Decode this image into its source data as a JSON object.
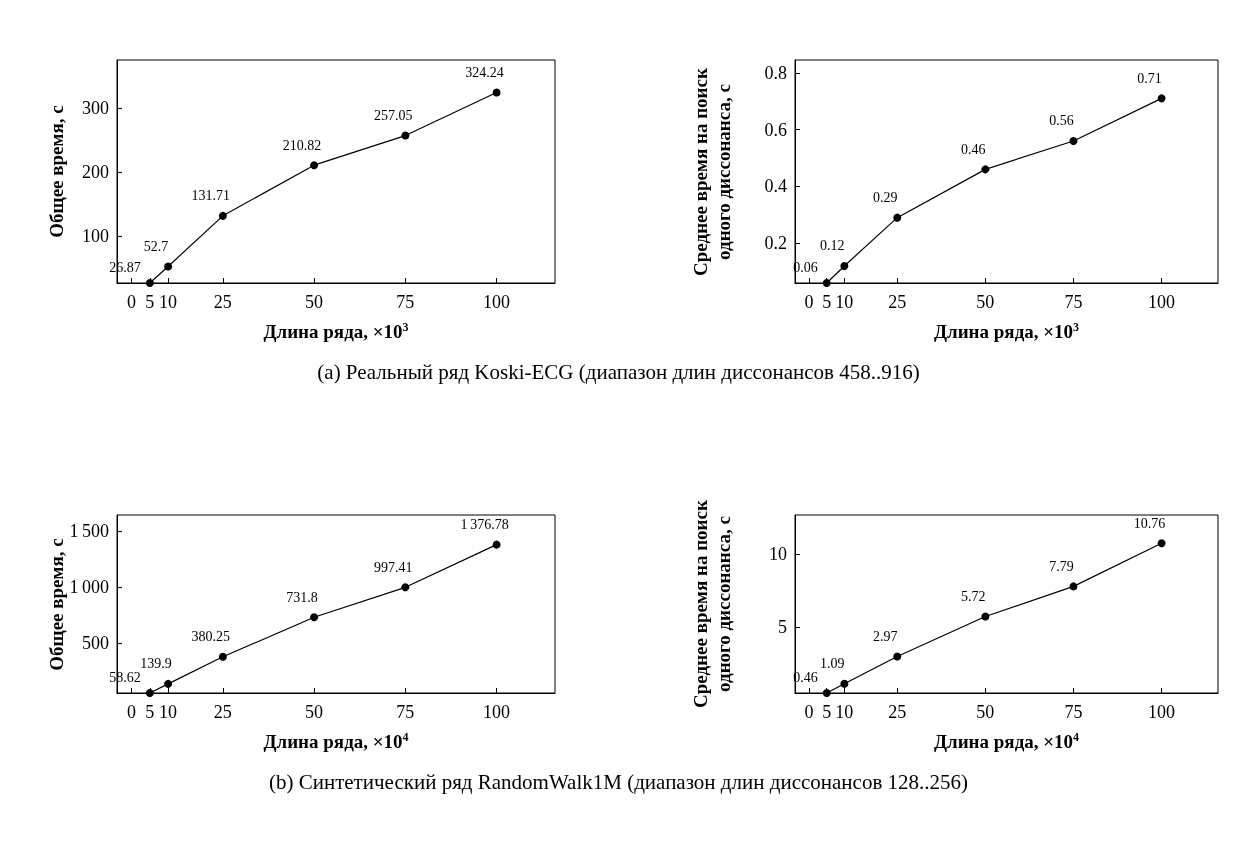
{
  "chart_data": [
    {
      "type": "line",
      "xlabel": "Длина ряда, ×10$^{3}$",
      "ylabel": "Общее время, с",
      "x": [
        5,
        10,
        25,
        50,
        75,
        100
      ],
      "series": [
        {
          "color": "#000000",
          "values": [
            26.87,
            52.7,
            131.71,
            210.82,
            257.05,
            324.24
          ]
        }
      ],
      "xlim": [
        -4,
        116
      ],
      "xticks": [
        0,
        5,
        10,
        25,
        50,
        75,
        100
      ],
      "ylim": [
        26.87,
        375
      ],
      "yticks": [
        100,
        200,
        300
      ],
      "marker": "circle",
      "line_style": "solid",
      "data_labels": true,
      "annotations": [
        "(a) Реальный ряд Koski-ECG (диапазон длин диссонансов 458..916)"
      ]
    },
    {
      "type": "line",
      "xlabel": "Длина ряда, ×10$^{3}$",
      "ylabel": "Среднее время на поиск одного диссонанса, с",
      "x": [
        5,
        10,
        25,
        50,
        75,
        100
      ],
      "series": [
        {
          "color": "#000000",
          "values": [
            0.06,
            0.12,
            0.29,
            0.46,
            0.56,
            0.71
          ]
        }
      ],
      "xlim": [
        -4,
        116
      ],
      "xticks": [
        0,
        5,
        10,
        25,
        50,
        75,
        100
      ],
      "ylim": [
        0.06,
        0.845
      ],
      "yticks": [
        0.2,
        0.4,
        0.6,
        0.8
      ],
      "marker": "circle",
      "line_style": "solid",
      "data_labels": true
    },
    {
      "type": "line",
      "xlabel": "Длина ряда, ×10$^{4}$",
      "ylabel": "Общее время, с",
      "x": [
        5,
        10,
        25,
        50,
        75,
        100
      ],
      "series": [
        {
          "color": "#000000",
          "values": [
            58.62,
            139.9,
            380.25,
            731.8,
            997.41,
            1376.78
          ]
        }
      ],
      "xlim": [
        -4,
        116
      ],
      "xticks": [
        0,
        5,
        10,
        25,
        50,
        75,
        100
      ],
      "ylim": [
        58.62,
        1640
      ],
      "yticks": [
        500,
        1000,
        1500
      ],
      "marker": "circle",
      "line_style": "solid",
      "data_labels": true,
      "annotations": [
        "(b) Синтетический ряд RandomWalk1M (диапазон длин диссонансов 128..256)"
      ]
    },
    {
      "type": "line",
      "xlabel": "Длина ряда, ×10$^{4}$",
      "ylabel": "Среднее время на поиск одного диссонанса, с",
      "x": [
        5,
        10,
        25,
        50,
        75,
        100
      ],
      "series": [
        {
          "color": "#000000",
          "values": [
            0.46,
            1.09,
            2.97,
            5.72,
            7.79,
            10.76
          ]
        }
      ],
      "xlim": [
        -4,
        116
      ],
      "xticks": [
        0,
        5,
        10,
        25,
        50,
        75,
        100
      ],
      "ylim": [
        0.46,
        12.7
      ],
      "yticks": [
        5,
        10
      ],
      "marker": "circle",
      "line_style": "solid",
      "data_labels": true
    }
  ]
}
